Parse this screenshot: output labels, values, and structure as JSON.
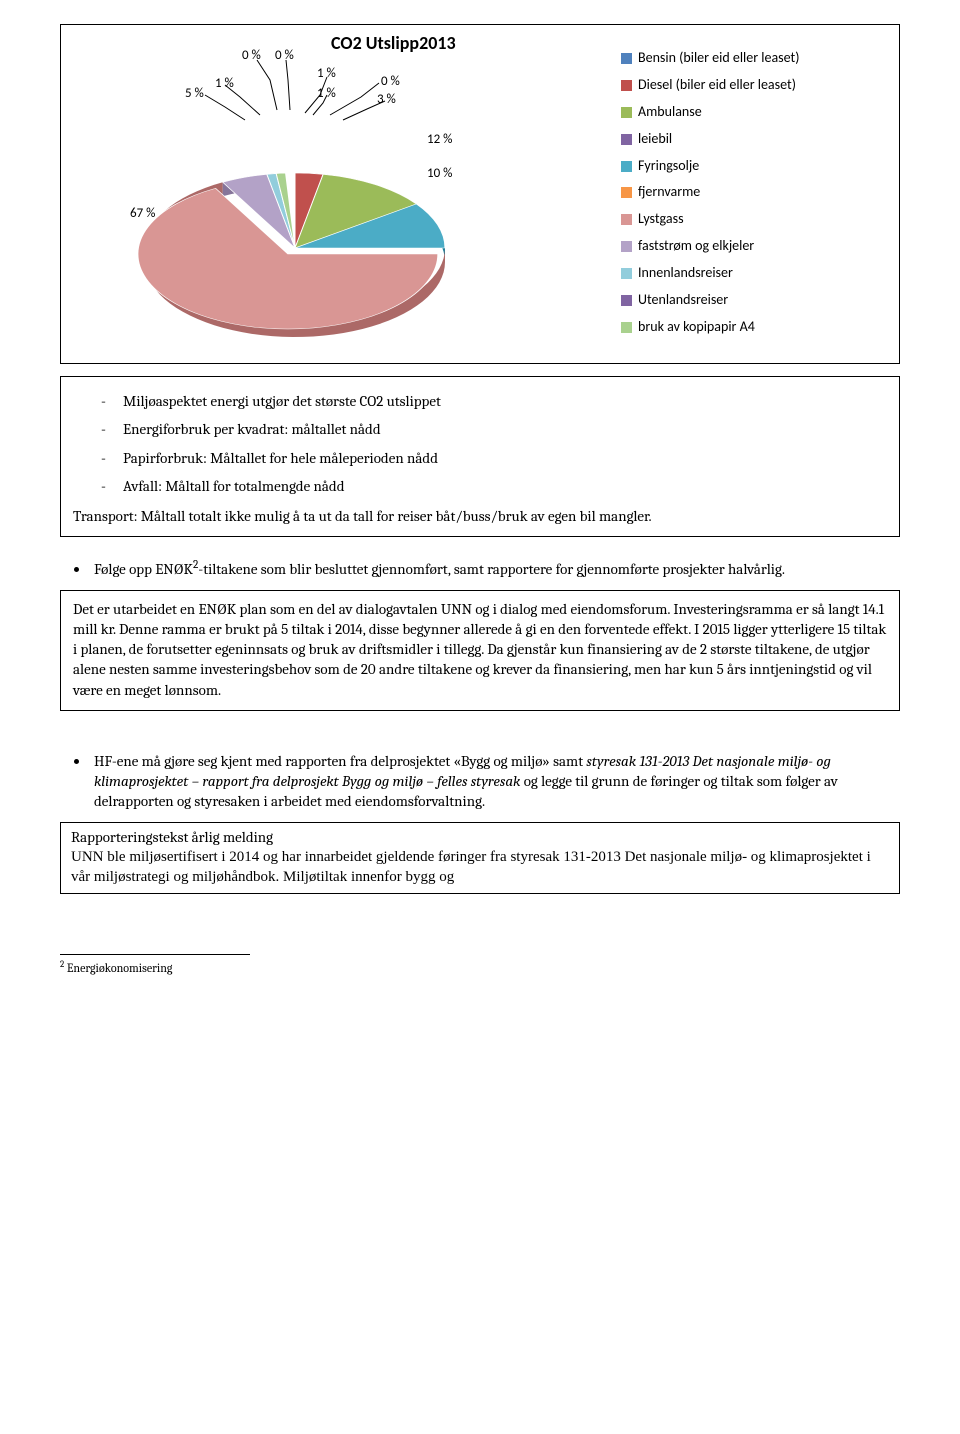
{
  "chart": {
    "title": "CO2 Utslipp2013",
    "type": "pie",
    "background_color": "#ffffff",
    "title_fontsize": 18,
    "label_fontsize": 13,
    "legend_fontsize": 14,
    "slices": [
      {
        "label": "Bensin (biler eid eller leaset)",
        "pct": 0,
        "pct_text": "0 %",
        "color": "#4f81bd"
      },
      {
        "label": "Diesel (biler eid eller leaset)",
        "pct": 3,
        "pct_text": "3 %",
        "color": "#c0504d"
      },
      {
        "label": "Ambulanse",
        "pct": 12,
        "pct_text": "12 %",
        "color": "#9bbb59"
      },
      {
        "label": "leiebil",
        "pct": 0,
        "pct_text": "",
        "color": "#8064a2"
      },
      {
        "label": "Fyringsolje",
        "pct": 10,
        "pct_text": "10 %",
        "color": "#4bacc6"
      },
      {
        "label": "fjernvarme",
        "pct": 0,
        "pct_text": "",
        "color": "#f79646"
      },
      {
        "label": "Lystgass",
        "pct": 67,
        "pct_text": "67 %",
        "color": "#d99694"
      },
      {
        "label": "faststrøm og elkjeler",
        "pct": 5,
        "pct_text": "5 %",
        "color": "#b3a2c7"
      },
      {
        "label": "Innenlandsreiser",
        "pct": 1,
        "pct_text": "1 %",
        "color": "#92cddc"
      },
      {
        "label": "Utenlandsreiser",
        "pct": 0,
        "pct_text": "0 %",
        "color": "#8064a2"
      },
      {
        "label": "bruk av kopipapir A4",
        "pct": 1,
        "pct_text": "1 %",
        "color": "#a9d18e"
      }
    ],
    "extra_labels": [
      "0 %",
      "1 %"
    ]
  },
  "box1": {
    "items": [
      "Miljøaspektet energi utgjør det største CO2 utslippet",
      "Energiforbruk per kvadrat: måltallet nådd",
      "Papirforbruk: Måltallet for hele måleperioden nådd",
      "Avfall: Måltall for totalmengde nådd"
    ],
    "para": "Transport: Måltall totalt ikke mulig å ta ut da tall for reiser båt/buss/bruk av egen bil mangler."
  },
  "bullet2_pre": "Følge opp ENØK",
  "bullet2_sup": "2",
  "bullet2_post": "-tiltakene som blir besluttet gjennomført, samt rapportere for gjennomførte prosjekter halvårlig.",
  "box2": "Det er utarbeidet en ENØK plan som en del av dialogavtalen UNN og i dialog med eiendomsforum. Investeringsramma er så langt 14.1 mill kr. Denne ramma er brukt på 5 tiltak i 2014, disse begynner allerede å gi en den forventede effekt. I 2015 ligger ytterligere 15 tiltak i planen, de forutsetter egeninnsats og bruk av driftsmidler i tillegg. Da gjenstår kun finansiering av de 2 største tiltakene, de utgjør alene nesten samme investeringsbehov som de 20 andre tiltakene og krever da finansiering, men har kun 5 års inntjeningstid og vil være en meget lønnsom.",
  "bullet3_a": "HF-ene må gjøre seg kjent med rapporten fra delprosjektet «Bygg og miljø» samt ",
  "bullet3_i": "styresak 131-2013 Det nasjonale miljø- og klimaprosjektet – rapport fra delprosjekt Bygg og miljø – felles styresak",
  "bullet3_b": " og legge til grunn de føringer og tiltak som følger av delrapporten og styresaken i arbeidet med eiendomsforvaltning.",
  "box3_heading": "Rapporteringstekst årlig melding",
  "box3_body": "UNN ble miljøsertifisert i 2014 og har innarbeidet gjeldende føringer fra styresak 131-2013 Det nasjonale miljø- og klimaprosjektet i vår miljøstrategi og miljøhåndbok. Miljøtiltak innenfor bygg og",
  "footnote_num": "2",
  "footnote_text": " Energiøkonomisering"
}
